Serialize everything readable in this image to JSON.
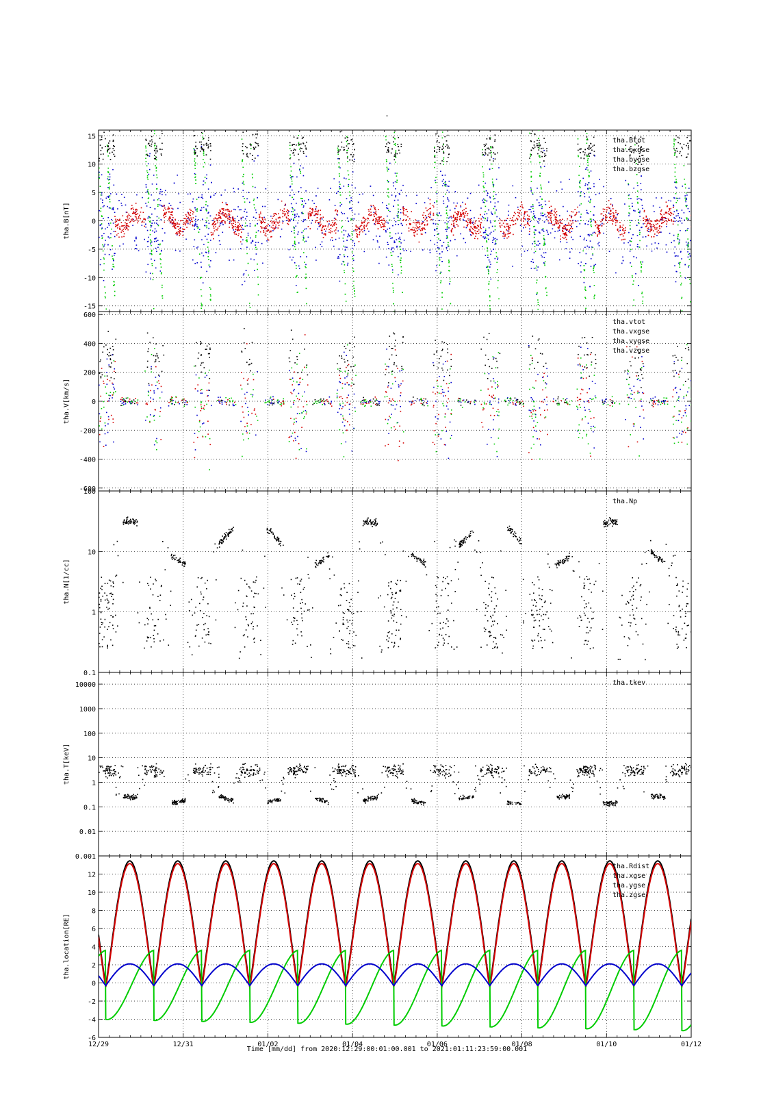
{
  "title": "-",
  "footer": {
    "time_label": "Time [mm/dd]  from 2020:12:29:00:01:00.001  to  2021:01:11:23:59:00.001"
  },
  "x_axis": {
    "range_days": [
      0,
      14
    ],
    "ticks": [
      {
        "day": 0,
        "label": "12/29"
      },
      {
        "day": 2,
        "label": "12/31"
      },
      {
        "day": 4,
        "label": "01/02"
      },
      {
        "day": 6,
        "label": "01/04"
      },
      {
        "day": 8,
        "label": "01/06"
      },
      {
        "day": 10,
        "label": "01/08"
      },
      {
        "day": 12,
        "label": "01/10"
      },
      {
        "day": 14,
        "label": "01/12"
      }
    ]
  },
  "colors": {
    "black": "#000000",
    "red": "#d40000",
    "green": "#00cc00",
    "blue": "#0000cc"
  },
  "chart_data": [
    {
      "type": "scatter",
      "id": "B",
      "ylabel": "tha.B[nT]",
      "ylim": [
        -16,
        16
      ],
      "yscale": "linear",
      "yticks": [
        -15,
        -10,
        -5,
        0,
        5,
        10,
        15
      ],
      "legend": [
        "tha.Btot",
        "tha.bxgse",
        "tha.bygse",
        "tha.bzgse"
      ],
      "series_colors": [
        "black",
        "red",
        "green",
        "blue"
      ]
    },
    {
      "type": "scatter",
      "id": "V",
      "ylabel": "tha.V[km/s]",
      "ylim": [
        -620,
        620
      ],
      "yscale": "linear",
      "yticks": [
        -600,
        -400,
        -200,
        0,
        200,
        400,
        600
      ],
      "legend": [
        "tha.vtot",
        "tha.vxgse",
        "tha.vygse",
        "tha.vzgse"
      ],
      "series_colors": [
        "black",
        "red",
        "green",
        "blue"
      ]
    },
    {
      "type": "scatter",
      "id": "N",
      "ylabel": "tha.N[1/cc]",
      "ylim": [
        0.1,
        100
      ],
      "yscale": "log",
      "yticks": [
        0.1,
        1,
        10,
        100
      ],
      "ytick_labels": [
        "0.1",
        "1",
        "10",
        "100"
      ],
      "legend": [
        "tha.Np"
      ],
      "series_colors": [
        "black"
      ]
    },
    {
      "type": "scatter",
      "id": "T",
      "ylabel": "tha.T[keV]",
      "ylim": [
        0.001,
        30000
      ],
      "yscale": "log",
      "yticks": [
        0.001,
        0.01,
        0.1,
        1,
        10,
        100,
        1000,
        10000
      ],
      "ytick_labels": [
        "0.001",
        "0.01",
        "0.1",
        "1",
        "10",
        "100",
        "1000",
        "10000"
      ],
      "legend": [
        "tha.tkev"
      ],
      "series_colors": [
        "black"
      ]
    },
    {
      "type": "line",
      "id": "location",
      "ylabel": "tha.location[RE]",
      "ylim": [
        -6,
        14
      ],
      "yscale": "linear",
      "yticks": [
        -6,
        -4,
        -2,
        0,
        2,
        4,
        6,
        8,
        10,
        12
      ],
      "legend": [
        "tha.Rdist",
        "tha.xgse",
        "tha.ygse",
        "tha.zgse"
      ],
      "series_colors": [
        "black",
        "red",
        "green",
        "blue"
      ],
      "orbit": {
        "period_days": 1.134,
        "first_perigee_day": 0.17,
        "apogee_re": 13.3,
        "perigee_re": -0.3
      }
    }
  ]
}
